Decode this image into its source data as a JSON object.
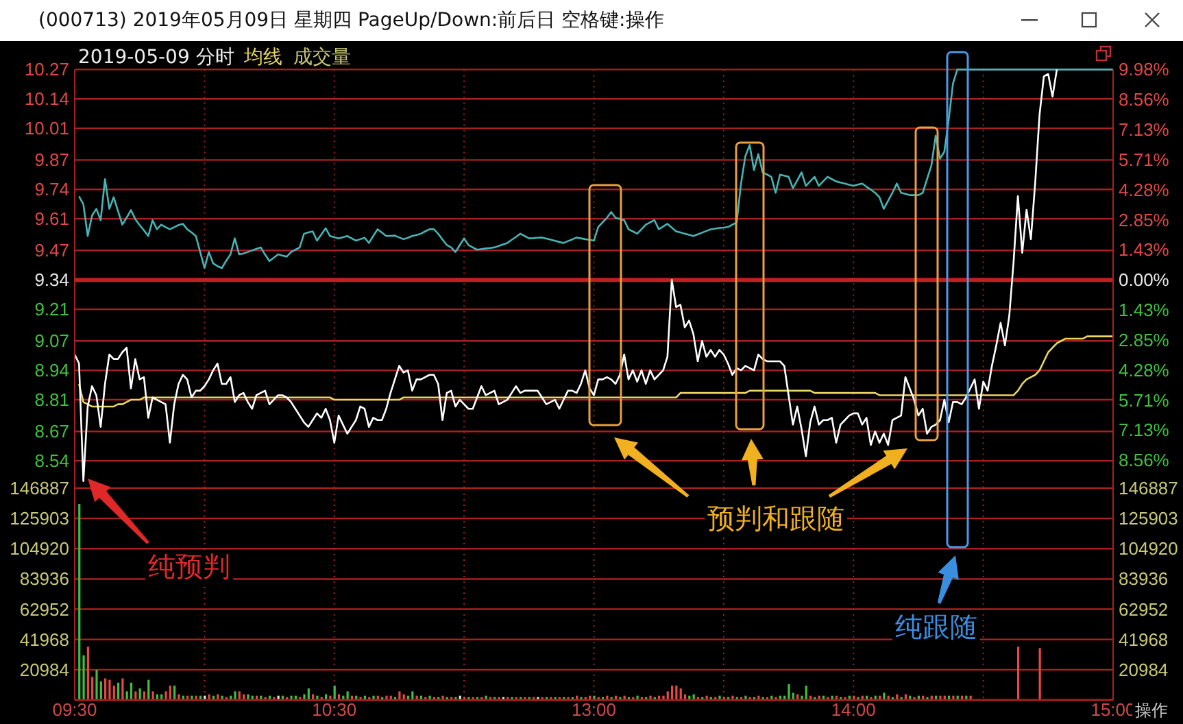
{
  "chart_data": [
    {
      "type": "line",
      "title": "(000713) 2019年05月09日 星期四 PageUp/Down:前后日 空格键:操作",
      "subtitle": "2019-05-09 分时",
      "categories": [
        null,
        null,
        null,
        null,
        null,
        null,
        null,
        null,
        null,
        null,
        null,
        null,
        null,
        null,
        null,
        null,
        null,
        null,
        null,
        null,
        null,
        null,
        null,
        null,
        null,
        null,
        null,
        null,
        null,
        null,
        null,
        null,
        null,
        null,
        null,
        null,
        null,
        null,
        null,
        null,
        null,
        null,
        null,
        null,
        null,
        null,
        null,
        null,
        null,
        null,
        null,
        null,
        null,
        null,
        null,
        null,
        null,
        null,
        null,
        null,
        null,
        null,
        null,
        null,
        null,
        null,
        null,
        null,
        null,
        null,
        null,
        null,
        null,
        null,
        null,
        null,
        null,
        null,
        null,
        null,
        null,
        null,
        null,
        null,
        null,
        null,
        null,
        null,
        null,
        null,
        null,
        null,
        null,
        null,
        null,
        null,
        null,
        null,
        null,
        null,
        null,
        null,
        null,
        null,
        null,
        null,
        null,
        null,
        null,
        null,
        null,
        null,
        null,
        null,
        null,
        null,
        null,
        null,
        null,
        null,
        null,
        null,
        null,
        null,
        null,
        null,
        null,
        null,
        null,
        null,
        null,
        null,
        null,
        null,
        null,
        null,
        null,
        null,
        null,
        null,
        null,
        null,
        null,
        null,
        null,
        null,
        null,
        null,
        null,
        null,
        null,
        null,
        null,
        null,
        null,
        null,
        null,
        null,
        null,
        null,
        null,
        null,
        null,
        null,
        null,
        null,
        null,
        null,
        null,
        null,
        null,
        null,
        null,
        null,
        null,
        null,
        null,
        null,
        null,
        null,
        null,
        null,
        null,
        null,
        null,
        null,
        null,
        null,
        null,
        null,
        null,
        null,
        null,
        null,
        null,
        null,
        null,
        null,
        null,
        null,
        null,
        null,
        null,
        null,
        null,
        null,
        null,
        null,
        null,
        null,
        null,
        null,
        null,
        null,
        null,
        null,
        null,
        null,
        null,
        null,
        null,
        null,
        null,
        null,
        null,
        null,
        null,
        null,
        null,
        null,
        null,
        null,
        null,
        null,
        null,
        null,
        null,
        null,
        null,
        null,
        null
      ],
      "ylim": [
        8.41,
        10.27
      ],
      "yticks": [
        8.54,
        8.67,
        8.81,
        8.94,
        9.07,
        9.21,
        9.34,
        9.47,
        9.61,
        9.74,
        9.87,
        10.01,
        10.14,
        10.27
      ],
      "y2lim": [
        -9.98,
        9.98
      ],
      "y2ticks": [
        {
          "value": -8.56,
          "label": "8.56%"
        },
        {
          "value": -7.13,
          "label": "7.13%"
        },
        {
          "value": -5.71,
          "label": "5.71%"
        },
        {
          "value": -4.28,
          "label": "4.28%"
        },
        {
          "value": -2.85,
          "label": "2.85%"
        },
        {
          "value": -1.43,
          "label": "1.43%"
        },
        {
          "value": 0,
          "label": "0.00%"
        },
        {
          "value": 1.43,
          "label": "1.43%"
        },
        {
          "value": 2.85,
          "label": "2.85%"
        },
        {
          "value": 4.28,
          "label": "4.28%"
        },
        {
          "value": 5.71,
          "label": "5.71%"
        },
        {
          "value": 7.13,
          "label": "7.13%"
        },
        {
          "value": 8.56,
          "label": "8.56%"
        },
        {
          "value": 9.98,
          "label": "9.98%"
        }
      ],
      "tick_labels": "y",
      "grid": true,
      "legend": "top left",
      "ref_lines": [
        {
          "axis": "y",
          "value": 9.34,
          "color": "#c02020"
        }
      ],
      "series": [
        {
          "color": "#48b4b4",
          "axis": "y2",
          "values": [
            null,
            3.96,
            3.59,
            2.08,
            3.05,
            3.37,
            2.83,
            4.78,
            3.37,
            3.92,
            3.27,
            2.62,
            2.95,
            3.31,
            2.88,
            2.6,
            2.35,
            2.08,
            2.83,
            2.4,
            2.62,
            2.5,
            2.4,
            2.5,
            2.6,
            2.66,
            2.4,
            2.25,
            2.08,
            1.32,
            0.56,
            1.32,
            0.78,
            0.65,
            0.56,
            0.9,
            1.21,
            1.97,
            1.21,
            1.25,
            1.32,
            1.4,
            1.47,
            1.54,
            1.2,
            0.89,
            1.05,
            1.21,
            1.15,
            1.1,
            1.32,
            1.43,
            1.54,
            2.19,
            2.25,
            2.3,
            1.86,
            2.15,
            2.45,
            2.08,
            2.02,
            1.97,
            2.02,
            2.08,
            1.97,
            1.86,
            1.93,
            2.0,
            1.75,
            2.08,
            2.4,
            2.24,
            2.08,
            2.09,
            2.1,
            2.01,
            1.93,
            2.0,
            2.08,
            2.13,
            2.19,
            2.3,
            2.4,
            2.4,
            2.19,
            1.92,
            1.65,
            1.54,
            1.32,
            1.65,
            1.97,
            1.65,
            1.54,
            1.43,
            1.46,
            1.49,
            1.51,
            1.54,
            1.61,
            1.68,
            1.75,
            1.9,
            2.04,
            2.19,
            2.08,
            1.97,
            1.98,
            2.0,
            2.01,
            1.96,
            1.91,
            1.85,
            1.8,
            1.75,
            1.84,
            1.92,
            2.01,
            1.97,
            1.93,
            1.9,
            1.86,
            2.51,
            2.73,
            2.94,
            3.22,
            2.94,
            2.89,
            2.83,
            2.4,
            2.3,
            2.19,
            2.4,
            2.62,
            2.73,
            2.83,
            2.4,
            2.53,
            2.66,
            2.48,
            2.3,
            2.25,
            2.19,
            2.14,
            2.08,
            2.16,
            2.24,
            2.32,
            2.4,
            2.43,
            2.46,
            2.48,
            2.51,
            2.62,
            2.72,
            4.57,
            5.86,
            6.4,
            5.21,
            5.97,
            5.1,
            5.0,
            4.89,
            4.13,
            4.99,
            4.94,
            4.89,
            4.35,
            4.72,
            5.1,
            4.46,
            4.68,
            4.89,
            4.46,
            4.68,
            4.89,
            4.78,
            4.67,
            4.62,
            4.57,
            4.51,
            4.46,
            4.52,
            4.57,
            4.42,
            4.28,
            4.13,
            3.92,
            3.37,
            3.75,
            4.13,
            4.57,
            4.13,
            4.08,
            4.02,
            4.02,
            4.02,
            4.13,
            4.78,
            5.43,
            6.84,
            5.75,
            6.08,
            7.59,
            9.32,
            9.98,
            9.98,
            9.98,
            9.98,
            9.98,
            9.98,
            9.98,
            9.98,
            9.98,
            9.98,
            9.98,
            9.98,
            9.98,
            9.98,
            9.98,
            9.98,
            9.98,
            9.98,
            9.98,
            9.98,
            9.98,
            9.98,
            9.98,
            9.98,
            9.98,
            9.98,
            9.98,
            9.98,
            9.98,
            9.98,
            9.98,
            9.98,
            9.98,
            9.98,
            9.98,
            9.98,
            9.98
          ]
        },
        {
          "name": "均线",
          "color": "#e8d860",
          "values": [
            null,
            8.88,
            8.8,
            8.79,
            8.78,
            8.78,
            8.78,
            8.78,
            8.78,
            8.78,
            8.79,
            8.79,
            8.8,
            8.81,
            8.81,
            8.81,
            8.82,
            8.82,
            8.82,
            8.82,
            8.82,
            8.82,
            8.82,
            8.82,
            8.82,
            8.82,
            8.82,
            8.82,
            8.82,
            8.82,
            8.82,
            8.82,
            8.82,
            8.82,
            8.82,
            8.82,
            8.82,
            8.82,
            8.82,
            8.82,
            8.82,
            8.82,
            8.82,
            8.82,
            8.82,
            8.82,
            8.82,
            8.82,
            8.82,
            8.82,
            8.82,
            8.82,
            8.82,
            8.82,
            8.82,
            8.82,
            8.82,
            8.82,
            8.82,
            8.82,
            8.81,
            8.81,
            8.81,
            8.81,
            8.81,
            8.81,
            8.81,
            8.81,
            8.81,
            8.81,
            8.81,
            8.81,
            8.81,
            8.81,
            8.81,
            8.81,
            8.82,
            8.82,
            8.82,
            8.82,
            8.82,
            8.82,
            8.82,
            8.82,
            8.82,
            8.82,
            8.82,
            8.82,
            8.82,
            8.82,
            8.82,
            8.82,
            8.82,
            8.82,
            8.82,
            8.82,
            8.82,
            8.82,
            8.82,
            8.82,
            8.82,
            8.82,
            8.82,
            8.82,
            8.82,
            8.82,
            8.82,
            8.82,
            8.82,
            8.82,
            8.82,
            8.82,
            8.82,
            8.82,
            8.82,
            8.82,
            8.82,
            8.82,
            8.82,
            8.82,
            8.82,
            8.82,
            8.82,
            8.82,
            8.82,
            8.82,
            8.82,
            8.82,
            8.82,
            8.82,
            8.82,
            8.82,
            8.82,
            8.82,
            8.82,
            8.82,
            8.82,
            8.82,
            8.82,
            8.82,
            8.84,
            8.84,
            8.84,
            8.84,
            8.84,
            8.84,
            8.84,
            8.84,
            8.84,
            8.84,
            8.84,
            8.84,
            8.84,
            8.84,
            8.84,
            8.84,
            8.85,
            8.85,
            8.85,
            8.85,
            8.85,
            8.85,
            8.85,
            8.85,
            8.85,
            8.85,
            8.85,
            8.85,
            8.85,
            8.85,
            8.85,
            8.84,
            8.84,
            8.84,
            8.84,
            8.84,
            8.84,
            8.84,
            8.84,
            8.84,
            8.84,
            8.84,
            8.84,
            8.84,
            8.84,
            8.84,
            8.83,
            8.83,
            8.83,
            8.83,
            8.83,
            8.83,
            8.83,
            8.83,
            8.83,
            8.83,
            8.83,
            8.83,
            8.83,
            8.83,
            8.83,
            8.83,
            8.83,
            8.83,
            8.83,
            8.83,
            8.83,
            8.83,
            8.83,
            8.83,
            8.83,
            8.83,
            8.83,
            8.83,
            8.83,
            8.83,
            8.83,
            8.83,
            8.85,
            8.88,
            8.9,
            8.91,
            8.92,
            8.94,
            8.98,
            9.02,
            9.04,
            9.06,
            9.07,
            9.08,
            9.08,
            9.08,
            9.08,
            9.08,
            9.09,
            9.09,
            9.09,
            9.09,
            9.09,
            9.09,
            9.09
          ]
        },
        {
          "color": "#ffffff",
          "values": [
            9.01,
            8.97,
            8.45,
            8.78,
            8.87,
            8.83,
            8.69,
            8.88,
            9.01,
            8.99,
            8.99,
            9.02,
            9.04,
            8.86,
            8.99,
            8.9,
            8.91,
            8.73,
            8.82,
            8.81,
            8.8,
            8.79,
            8.62,
            8.79,
            8.88,
            8.92,
            8.9,
            8.82,
            8.85,
            8.85,
            8.87,
            8.9,
            8.94,
            8.97,
            8.88,
            8.88,
            8.91,
            8.8,
            8.83,
            8.84,
            8.8,
            8.77,
            8.83,
            8.84,
            8.85,
            8.79,
            8.81,
            8.83,
            8.83,
            8.82,
            8.8,
            8.77,
            8.74,
            8.71,
            8.69,
            8.72,
            8.75,
            8.73,
            8.77,
            8.72,
            8.62,
            8.74,
            8.7,
            8.66,
            8.69,
            8.72,
            8.78,
            8.77,
            8.69,
            8.73,
            8.72,
            8.72,
            8.77,
            8.84,
            8.9,
            8.96,
            8.93,
            8.94,
            8.85,
            8.9,
            8.9,
            8.91,
            8.92,
            8.92,
            8.88,
            8.72,
            8.84,
            8.85,
            8.78,
            8.81,
            8.79,
            8.77,
            8.77,
            8.82,
            8.87,
            8.83,
            8.84,
            8.85,
            8.79,
            8.8,
            8.81,
            8.84,
            8.87,
            8.84,
            8.85,
            8.85,
            8.85,
            8.85,
            8.82,
            8.79,
            8.8,
            8.81,
            8.77,
            8.81,
            8.85,
            8.85,
            8.84,
            8.88,
            8.94,
            8.86,
            8.83,
            8.9,
            8.9,
            8.91,
            8.9,
            8.88,
            8.92,
            9.01,
            8.9,
            8.94,
            8.89,
            8.94,
            8.88,
            8.94,
            8.9,
            8.92,
            8.94,
            9.0,
            9.34,
            9.22,
            9.23,
            9.13,
            9.16,
            9.1,
            8.98,
            9.07,
            9.0,
            9.03,
            9.0,
            9.03,
            9.01,
            8.97,
            8.92,
            8.95,
            8.94,
            8.96,
            8.95,
            8.94,
            9.01,
            8.99,
            8.98,
            8.98,
            8.98,
            8.98,
            8.96,
            8.83,
            8.7,
            8.78,
            8.68,
            8.56,
            8.71,
            8.78,
            8.7,
            8.72,
            8.72,
            8.73,
            8.62,
            8.7,
            8.72,
            8.74,
            8.75,
            8.75,
            8.7,
            8.73,
            8.61,
            8.67,
            8.62,
            8.66,
            8.61,
            8.72,
            8.73,
            8.74,
            8.91,
            8.86,
            8.81,
            8.74,
            8.77,
            8.66,
            8.69,
            8.7,
            8.72,
            8.81,
            8.71,
            8.8,
            8.8,
            8.79,
            8.82,
            8.86,
            8.9,
            8.77,
            8.89,
            8.85,
            8.96,
            9.05,
            9.15,
            9.05,
            9.18,
            9.42,
            9.71,
            9.46,
            9.65,
            9.52,
            9.77,
            10.07,
            10.24,
            10.25,
            10.15,
            10.27,
            null,
            null,
            null,
            null,
            null,
            null,
            null,
            null,
            null,
            null,
            null,
            null,
            null
          ]
        }
      ],
      "annotations": [
        "纯预判",
        "预判和跟随",
        "纯跟随"
      ]
    },
    {
      "type": "bar",
      "categories": [
        "09:30",
        null,
        null,
        null,
        null,
        null,
        null,
        null,
        null,
        null,
        null,
        null,
        null,
        null,
        null,
        null,
        null,
        null,
        null,
        null,
        null,
        null,
        null,
        null,
        null,
        null,
        null,
        null,
        null,
        null,
        null,
        null,
        null,
        null,
        null,
        null,
        null,
        null,
        null,
        null,
        null,
        null,
        null,
        null,
        null,
        null,
        null,
        null,
        null,
        null,
        null,
        null,
        null,
        null,
        null,
        null,
        null,
        null,
        null,
        null,
        "10:30",
        null,
        null,
        null,
        null,
        null,
        null,
        null,
        null,
        null,
        null,
        null,
        null,
        null,
        null,
        null,
        null,
        null,
        null,
        null,
        null,
        null,
        null,
        null,
        null,
        null,
        null,
        null,
        null,
        null,
        null,
        null,
        null,
        null,
        null,
        null,
        null,
        null,
        null,
        null,
        null,
        null,
        null,
        null,
        null,
        null,
        null,
        null,
        null,
        null,
        null,
        null,
        null,
        null,
        null,
        null,
        null,
        null,
        null,
        null,
        "13:00",
        null,
        null,
        null,
        null,
        null,
        null,
        null,
        null,
        null,
        null,
        null,
        null,
        null,
        null,
        null,
        null,
        null,
        null,
        null,
        null,
        null,
        null,
        null,
        null,
        null,
        null,
        null,
        null,
        null,
        null,
        null,
        null,
        null,
        null,
        null,
        null,
        null,
        null,
        null,
        null,
        null,
        null,
        null,
        null,
        null,
        null,
        null,
        null,
        null,
        null,
        null,
        null,
        null,
        null,
        null,
        null,
        null,
        null,
        null,
        "14:00",
        null,
        null,
        null,
        null,
        null,
        null,
        null,
        null,
        null,
        null,
        null,
        null,
        null,
        null,
        null,
        null,
        null,
        null,
        null,
        null,
        null,
        null,
        null,
        null,
        null,
        null,
        null,
        null,
        null,
        null,
        null,
        null,
        null,
        null,
        null,
        null,
        null,
        null,
        null,
        null,
        null,
        null,
        null,
        null,
        null,
        null,
        null,
        null,
        null,
        null,
        null,
        null,
        null,
        null,
        null,
        null,
        null,
        null,
        null,
        "15:00"
      ],
      "ylim": [
        0,
        146887
      ],
      "yticks": [
        20984,
        41968,
        62952,
        83936,
        104920,
        125903,
        146887
      ],
      "y2lim": [
        0,
        146887
      ],
      "y2ticks": [
        20984,
        41968,
        62952,
        83936,
        104920,
        125903,
        146887
      ],
      "grid": true,
      "legend": "top left",
      "series": [
        {
          "name": "成交量",
          "values": [
            null,
            136000,
            31000,
            37000,
            16000,
            21000,
            13000,
            15000,
            14000,
            10000,
            12000,
            15000,
            6000,
            12000,
            6000,
            8000,
            6000,
            14000,
            6000,
            4000,
            4000,
            6000,
            10000,
            10000,
            4000,
            3000,
            3000,
            3000,
            3000,
            3000,
            3000,
            4000,
            3000,
            4000,
            3000,
            2000,
            3000,
            6000,
            6000,
            4000,
            4000,
            3000,
            3000,
            3000,
            2000,
            3000,
            2000,
            3000,
            3000,
            2000,
            3000,
            3000,
            2000,
            4000,
            8000,
            4000,
            3000,
            2000,
            4000,
            3000,
            10000,
            4000,
            3000,
            6000,
            3000,
            3000,
            2000,
            3000,
            2000,
            3000,
            3000,
            2000,
            3000,
            3000,
            2000,
            6000,
            4000,
            3000,
            6000,
            3000,
            3000,
            2000,
            3000,
            2000,
            2000,
            3000,
            2000,
            2000,
            2000,
            3000,
            2000,
            2000,
            2000,
            2000,
            2000,
            3000,
            2000,
            2000,
            2000,
            2000,
            2000,
            2000,
            2000,
            2000,
            2000,
            2000,
            2000,
            2000,
            2000,
            2000,
            2000,
            2000,
            2000,
            2000,
            2000,
            2000,
            3000,
            2000,
            2000,
            3000,
            3000,
            2000,
            2000,
            3000,
            2000,
            3000,
            2000,
            3000,
            2000,
            2000,
            3000,
            2000,
            2000,
            3000,
            2000,
            3000,
            3000,
            6000,
            10000,
            10000,
            8000,
            4000,
            3000,
            4000,
            2000,
            2000,
            3000,
            2000,
            2000,
            3000,
            2000,
            2000,
            3000,
            2000,
            2000,
            3000,
            2000,
            2000,
            3000,
            2000,
            2000,
            3000,
            2000,
            3000,
            3000,
            11000,
            5000,
            4000,
            3000,
            10000,
            3000,
            2000,
            3000,
            3000,
            2000,
            3000,
            3000,
            2000,
            2000,
            3000,
            3000,
            2000,
            3000,
            3000,
            2000,
            3000,
            3000,
            5000,
            3000,
            2000,
            4000,
            2000,
            4000,
            3000,
            2000,
            3000,
            3000,
            2000,
            3000,
            3000,
            3000,
            3000,
            3000,
            3000,
            3000,
            3000,
            3000,
            3000,
            null,
            null,
            null,
            null,
            null,
            null,
            null,
            null,
            null,
            null,
            37000,
            null,
            null,
            null,
            null,
            36000,
            null,
            null,
            null,
            null,
            null,
            null,
            null,
            null,
            null,
            null,
            null,
            null,
            null,
            null,
            null,
            null,
            null
          ],
          "colors": [
            null,
            "#40c040",
            "#40c040",
            "#e84848",
            "#e84848",
            "#40c040",
            "#40c040",
            "#e84848",
            "#e84848",
            "#e84848",
            "#40c040",
            "#e84848",
            "#40c040",
            "#40c040",
            "#e84848",
            "#40c040",
            "#e84848",
            "#40c040",
            "#e84848",
            "#40c040",
            "#40c040",
            "#e84848",
            "#e84848",
            "#40c040",
            "#e84848",
            "#40c040",
            "#e84848",
            "#40c040",
            "#e84848",
            "#40c040",
            "#e8e8e8",
            "#e84848",
            "#40c040",
            "#e84848",
            "#40c040",
            "#e84848",
            "#40c040",
            "#40c040",
            "#e84848",
            "#e84848",
            "#40c040",
            "#40c040",
            "#e84848",
            "#40c040",
            "#e84848",
            "#40c040",
            "#e84848",
            "#e8e8e8",
            "#40c040",
            "#e84848",
            "#40c040",
            "#40c040",
            "#e84848",
            "#40c040",
            "#40c040",
            "#e84848",
            "#40c040",
            "#e84848",
            "#40c040",
            "#e84848",
            "#40c040",
            "#e84848",
            "#40c040",
            "#40c040",
            "#e84848",
            "#40c040",
            "#e84848",
            "#40c040",
            "#e84848",
            "#40c040",
            "#e84848",
            "#40c040",
            "#e84848",
            "#e84848",
            "#40c040",
            "#e84848",
            "#e84848",
            "#40c040",
            "#40c040",
            "#e84848",
            "#40c040",
            "#e84848",
            "#40c040",
            "#e84848",
            "#40c040",
            "#e84848",
            "#40c040",
            "#e84848",
            "#40c040",
            "#e8e8e8",
            "#e84848",
            "#40c040",
            "#e84848",
            "#40c040",
            "#e84848",
            "#40c040",
            "#e84848",
            "#40c040",
            "#e84848",
            "#e8e8e8",
            "#e84848",
            "#40c040",
            "#e84848",
            "#40c040",
            "#e84848",
            "#40c040",
            "#e84848",
            "#e8e8e8",
            "#e84848",
            "#40c040",
            "#e84848",
            "#40c040",
            "#e84848",
            "#40c040",
            "#e84848",
            "#40c040",
            "#e84848",
            "#40c040",
            "#e84848",
            "#e84848",
            "#40c040",
            "#e84848",
            "#40c040",
            "#e84848",
            "#40c040",
            "#e84848",
            "#40c040",
            "#e84848",
            "#40c040",
            "#e84848",
            "#40c040",
            "#e84848",
            "#40c040",
            "#e84848",
            "#40c040",
            "#e84848",
            "#e84848",
            "#e84848",
            "#e84848",
            "#e84848",
            "#e84848",
            "#e84848",
            "#40c040",
            "#40c040",
            "#e84848",
            "#40c040",
            "#e84848",
            "#40c040",
            "#e84848",
            "#40c040",
            "#e84848",
            "#40c040",
            "#e84848",
            "#40c040",
            "#e84848",
            "#40c040",
            "#e84848",
            "#40c040",
            "#e84848",
            "#40c040",
            "#e84848",
            "#40c040",
            "#e84848",
            "#40c040",
            "#40c040",
            "#40c040",
            "#40c040",
            "#e84848",
            "#40c040",
            "#40c040",
            "#e84848",
            "#40c040",
            "#e84848",
            "#40c040",
            "#e84848",
            "#40c040",
            "#e84848",
            "#40c040",
            "#e84848",
            "#40c040",
            "#e84848",
            "#40c040",
            "#e84848",
            "#40c040",
            "#e84848",
            "#40c040",
            "#e84848",
            "#40c040",
            "#e84848",
            "#40c040",
            "#e84848",
            "#40c040",
            "#e84848",
            "#40c040",
            "#e84848",
            "#40c040",
            "#e84848",
            "#40c040",
            "#e84848",
            "#40c040",
            "#e84848",
            "#e84848",
            "#40c040",
            "#e84848",
            "#40c040",
            "#e84848",
            "#40c040",
            "#e84848",
            null,
            null,
            null,
            null,
            null,
            null,
            null,
            null,
            null,
            null,
            "#e84848",
            null,
            null,
            null,
            null,
            "#e84848",
            null,
            null,
            null,
            null,
            null,
            null,
            null,
            null,
            null,
            null,
            null,
            null,
            null,
            null,
            null,
            null,
            null
          ]
        }
      ],
      "annotations": [
        "操作"
      ]
    }
  ]
}
